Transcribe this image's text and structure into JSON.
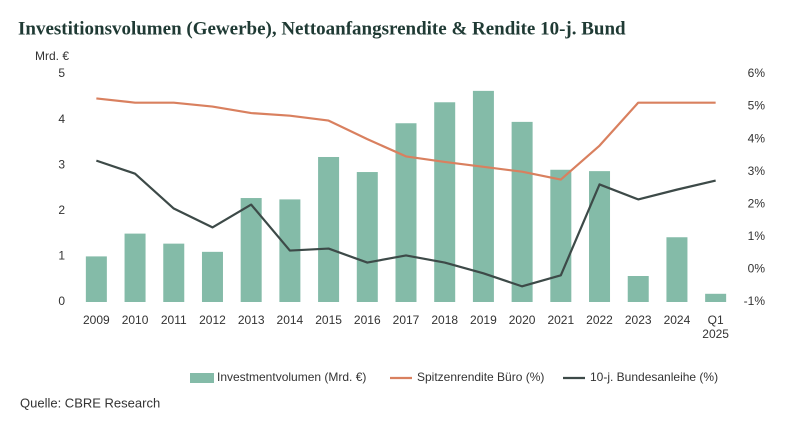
{
  "chart_data": {
    "type": "bar",
    "title": "Investitionsvolumen (Gewerbe), Nettoanfangsrendite & Rendite 10-j. Bund",
    "y_label": "Mrd. €",
    "source": "Quelle: CBRE Research",
    "categories": [
      "2009",
      "2010",
      "2011",
      "2012",
      "2013",
      "2014",
      "2015",
      "2016",
      "2017",
      "2018",
      "2019",
      "2020",
      "2021",
      "2022",
      "2023",
      "2024",
      "Q1 2025"
    ],
    "series": [
      {
        "name": "Investmentvolumen (Mrd. €)",
        "type": "bar",
        "color": "#84bba8",
        "values": [
          1.0,
          1.5,
          1.28,
          1.1,
          2.28,
          2.25,
          3.18,
          2.85,
          3.92,
          4.38,
          4.63,
          3.95,
          2.9,
          2.87,
          0.57,
          1.42,
          0.18
        ]
      },
      {
        "name": "Spitzenrendite Büro (%)",
        "type": "line",
        "axis": "y2",
        "color": "#d9805f",
        "values": [
          5.25,
          5.12,
          5.12,
          5.0,
          4.8,
          4.72,
          4.57,
          4.0,
          3.47,
          3.3,
          3.15,
          3.0,
          2.76,
          3.8,
          5.12,
          5.12,
          5.12
        ]
      },
      {
        "name": "10-j. Bundesanleihe (%)",
        "type": "line",
        "axis": "y2",
        "color": "#3d4a48",
        "values": [
          3.34,
          2.94,
          1.87,
          1.29,
          1.99,
          0.58,
          0.64,
          0.21,
          0.43,
          0.21,
          -0.12,
          -0.52,
          -0.18,
          2.61,
          2.15,
          2.45,
          2.73
        ]
      }
    ],
    "ylim": [
      0,
      5
    ],
    "yticks": [
      0,
      1,
      2,
      3,
      4,
      5
    ],
    "y2lim": [
      -1,
      6
    ],
    "y2ticks": [
      {
        "value": -1,
        "label": "-1%"
      },
      {
        "value": 0,
        "label": "0%"
      },
      {
        "value": 1,
        "label": "1%"
      },
      {
        "value": 2,
        "label": "2%"
      },
      {
        "value": 3,
        "label": "3%"
      },
      {
        "value": 4,
        "label": "4%"
      },
      {
        "value": 5,
        "label": "5%"
      },
      {
        "value": 6,
        "label": "6%"
      }
    ],
    "grid": false
  }
}
